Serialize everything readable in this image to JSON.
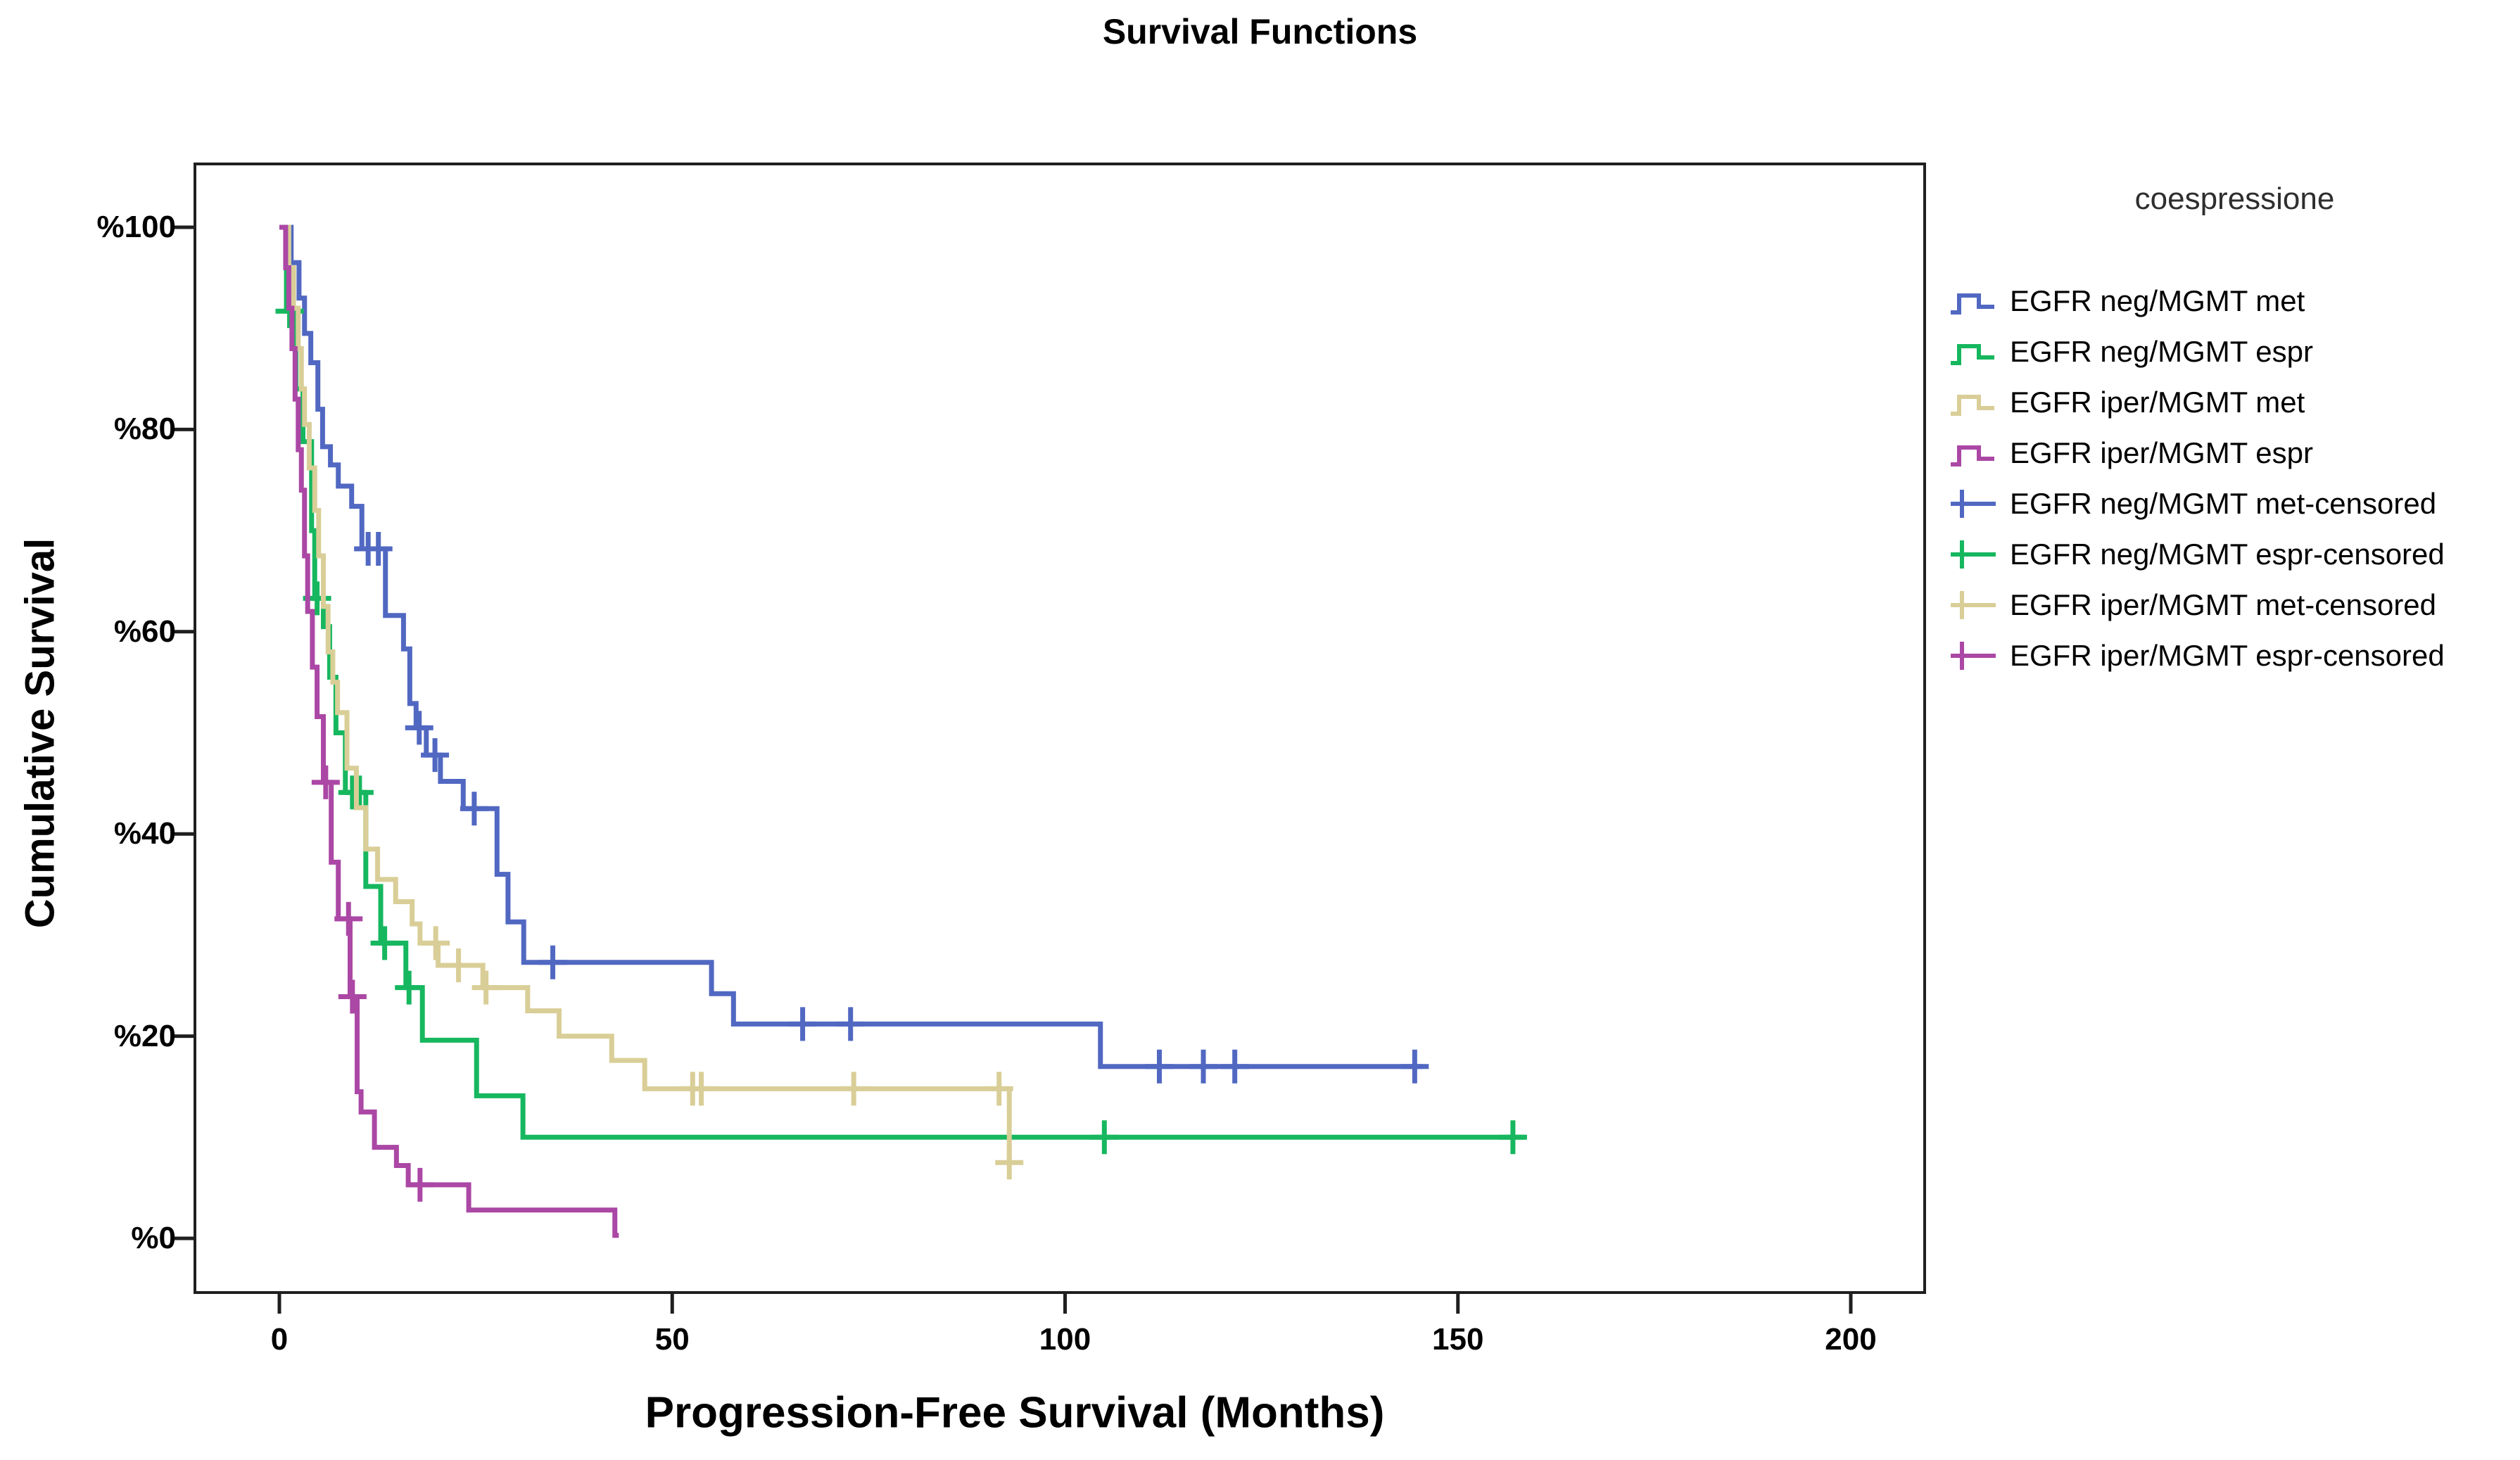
{
  "chart_data": {
    "type": "line",
    "variant": "kaplan_meier_step",
    "title": "Survival Functions",
    "xlabel": "Progression-Free Survival (Months)",
    "ylabel": "Cumulative Survival",
    "xlim": [
      -10.7,
      209.4
    ],
    "ylim": [
      -5.4,
      106.3
    ],
    "grid": false,
    "x_ticks": {
      "values": [
        0,
        50,
        100,
        150,
        200
      ],
      "labels": [
        "0",
        "50",
        "100",
        "150",
        "200"
      ]
    },
    "y_ticks": {
      "values": [
        0,
        20,
        40,
        60,
        80,
        100
      ],
      "labels": [
        "%0",
        "%20",
        "%40",
        "%60",
        "%80",
        "%100"
      ]
    },
    "legend": {
      "title": "coespressione",
      "position": "right",
      "entries": [
        {
          "label": "EGFR neg/MGMT met",
          "color": "#5168c2",
          "glyph": "step"
        },
        {
          "label": "EGFR neg/MGMT espr",
          "color": "#16b75f",
          "glyph": "step"
        },
        {
          "label": "EGFR iper/MGMT met",
          "color": "#d9ce97",
          "glyph": "step"
        },
        {
          "label": "EGFR iper/MGMT espr",
          "color": "#ab47a5",
          "glyph": "step"
        },
        {
          "label": "EGFR neg/MGMT met-censored",
          "color": "#5168c2",
          "glyph": "plus"
        },
        {
          "label": "EGFR neg/MGMT espr-censored",
          "color": "#16b75f",
          "glyph": "plus"
        },
        {
          "label": "EGFR iper/MGMT met-censored",
          "color": "#d9ce97",
          "glyph": "plus"
        },
        {
          "label": "EGFR iper/MGMT espr-censored",
          "color": "#ab47a5",
          "glyph": "plus"
        }
      ]
    },
    "series": [
      {
        "name": "EGFR neg/MGMT met",
        "color": "#5168c2",
        "end_time": 145.5,
        "survival_steps": [
          [
            0,
            100
          ],
          [
            1.5,
            96.5
          ],
          [
            2.5,
            93.0
          ],
          [
            3.2,
            89.5
          ],
          [
            4.0,
            86.6
          ],
          [
            4.9,
            82.0
          ],
          [
            5.5,
            78.3
          ],
          [
            6.5,
            76.5
          ],
          [
            7.5,
            74.4
          ],
          [
            9.2,
            72.4
          ],
          [
            10.5,
            68.2
          ],
          [
            13.5,
            61.6
          ],
          [
            15.8,
            58.3
          ],
          [
            16.6,
            52.9
          ],
          [
            17.4,
            50.5
          ],
          [
            18.7,
            47.8
          ],
          [
            20.5,
            45.2
          ],
          [
            23.4,
            42.5
          ],
          [
            27.7,
            36.0
          ],
          [
            29.1,
            31.3
          ],
          [
            31.1,
            27.3
          ],
          [
            55.0,
            24.2
          ],
          [
            57.8,
            21.2
          ],
          [
            104.5,
            17.0
          ]
        ],
        "censored": [
          [
            11.3,
            68.2
          ],
          [
            12.6,
            68.2
          ],
          [
            17.8,
            50.5
          ],
          [
            19.8,
            47.8
          ],
          [
            24.8,
            42.5
          ],
          [
            34.8,
            27.3
          ],
          [
            66.6,
            21.2
          ],
          [
            72.7,
            21.2
          ],
          [
            112.0,
            17.0
          ],
          [
            117.6,
            17.0
          ],
          [
            121.6,
            17.0
          ],
          [
            144.5,
            17.0
          ]
        ]
      },
      {
        "name": "EGFR neg/MGMT espr",
        "color": "#16b75f",
        "end_time": 158.5,
        "survival_steps": [
          [
            0,
            100
          ],
          [
            0.9,
            91.7
          ],
          [
            2.1,
            84.0
          ],
          [
            3.0,
            78.8
          ],
          [
            4.1,
            70.0
          ],
          [
            4.5,
            63.3
          ],
          [
            5.6,
            60.5
          ],
          [
            6.4,
            55.5
          ],
          [
            7.2,
            50.0
          ],
          [
            8.4,
            44.1
          ],
          [
            11.0,
            34.8
          ],
          [
            12.9,
            29.2
          ],
          [
            16.1,
            24.8
          ],
          [
            18.2,
            19.6
          ],
          [
            25.1,
            14.1
          ],
          [
            31.0,
            10.0
          ]
        ],
        "censored": [
          [
            1.3,
            91.7
          ],
          [
            4.8,
            63.3
          ],
          [
            9.3,
            44.1
          ],
          [
            10.2,
            44.1
          ],
          [
            13.4,
            29.2
          ],
          [
            16.5,
            24.8
          ],
          [
            105.0,
            10.0
          ],
          [
            157.0,
            10.0
          ]
        ]
      },
      {
        "name": "EGFR iper/MGMT met",
        "color": "#d9ce97",
        "end_time": 93.2,
        "survival_steps": [
          [
            0,
            100
          ],
          [
            1.2,
            96.0
          ],
          [
            1.8,
            92.0
          ],
          [
            2.4,
            88.0
          ],
          [
            2.8,
            84.0
          ],
          [
            3.2,
            80.5
          ],
          [
            3.8,
            76.2
          ],
          [
            4.5,
            72.0
          ],
          [
            5.0,
            67.5
          ],
          [
            5.6,
            62.5
          ],
          [
            6.2,
            58.0
          ],
          [
            6.8,
            55.0
          ],
          [
            7.4,
            52.0
          ],
          [
            8.6,
            46.5
          ],
          [
            9.8,
            42.6
          ],
          [
            11.0,
            38.5
          ],
          [
            12.5,
            35.5
          ],
          [
            14.8,
            33.3
          ],
          [
            16.9,
            31.1
          ],
          [
            17.9,
            29.2
          ],
          [
            20.2,
            27.0
          ],
          [
            25.9,
            24.8
          ],
          [
            31.6,
            22.5
          ],
          [
            35.6,
            20.0
          ],
          [
            42.3,
            17.6
          ],
          [
            46.5,
            14.8
          ],
          [
            92.9,
            7.5
          ]
        ],
        "censored": [
          [
            19.9,
            29.2
          ],
          [
            22.8,
            27.0
          ],
          [
            26.3,
            24.8
          ],
          [
            52.6,
            14.8
          ],
          [
            53.7,
            14.8
          ],
          [
            73.1,
            14.8
          ],
          [
            91.6,
            14.8
          ],
          [
            92.9,
            7.5
          ]
        ]
      },
      {
        "name": "EGFR iper/MGMT espr",
        "color": "#ab47a5",
        "end_time": 43.2,
        "survival_steps": [
          [
            0,
            100
          ],
          [
            0.8,
            96.0
          ],
          [
            1.2,
            92.0
          ],
          [
            1.6,
            88.0
          ],
          [
            2.0,
            83.0
          ],
          [
            2.4,
            78.0
          ],
          [
            2.8,
            74.0
          ],
          [
            3.2,
            67.5
          ],
          [
            3.6,
            62.0
          ],
          [
            4.2,
            56.5
          ],
          [
            4.8,
            51.6
          ],
          [
            5.6,
            45.1
          ],
          [
            6.6,
            37.2
          ],
          [
            7.5,
            31.6
          ],
          [
            9.0,
            23.9
          ],
          [
            9.9,
            14.5
          ],
          [
            10.4,
            12.5
          ],
          [
            12.1,
            9.0
          ],
          [
            14.9,
            7.2
          ],
          [
            16.4,
            5.3
          ],
          [
            24.1,
            2.8
          ],
          [
            42.7,
            0.3
          ]
        ],
        "censored": [
          [
            5.9,
            45.1
          ],
          [
            8.8,
            31.6
          ],
          [
            9.3,
            23.9
          ],
          [
            17.9,
            5.3
          ]
        ]
      }
    ],
    "frame_color": "#1f1f1f",
    "background_color": "#ffffff"
  }
}
